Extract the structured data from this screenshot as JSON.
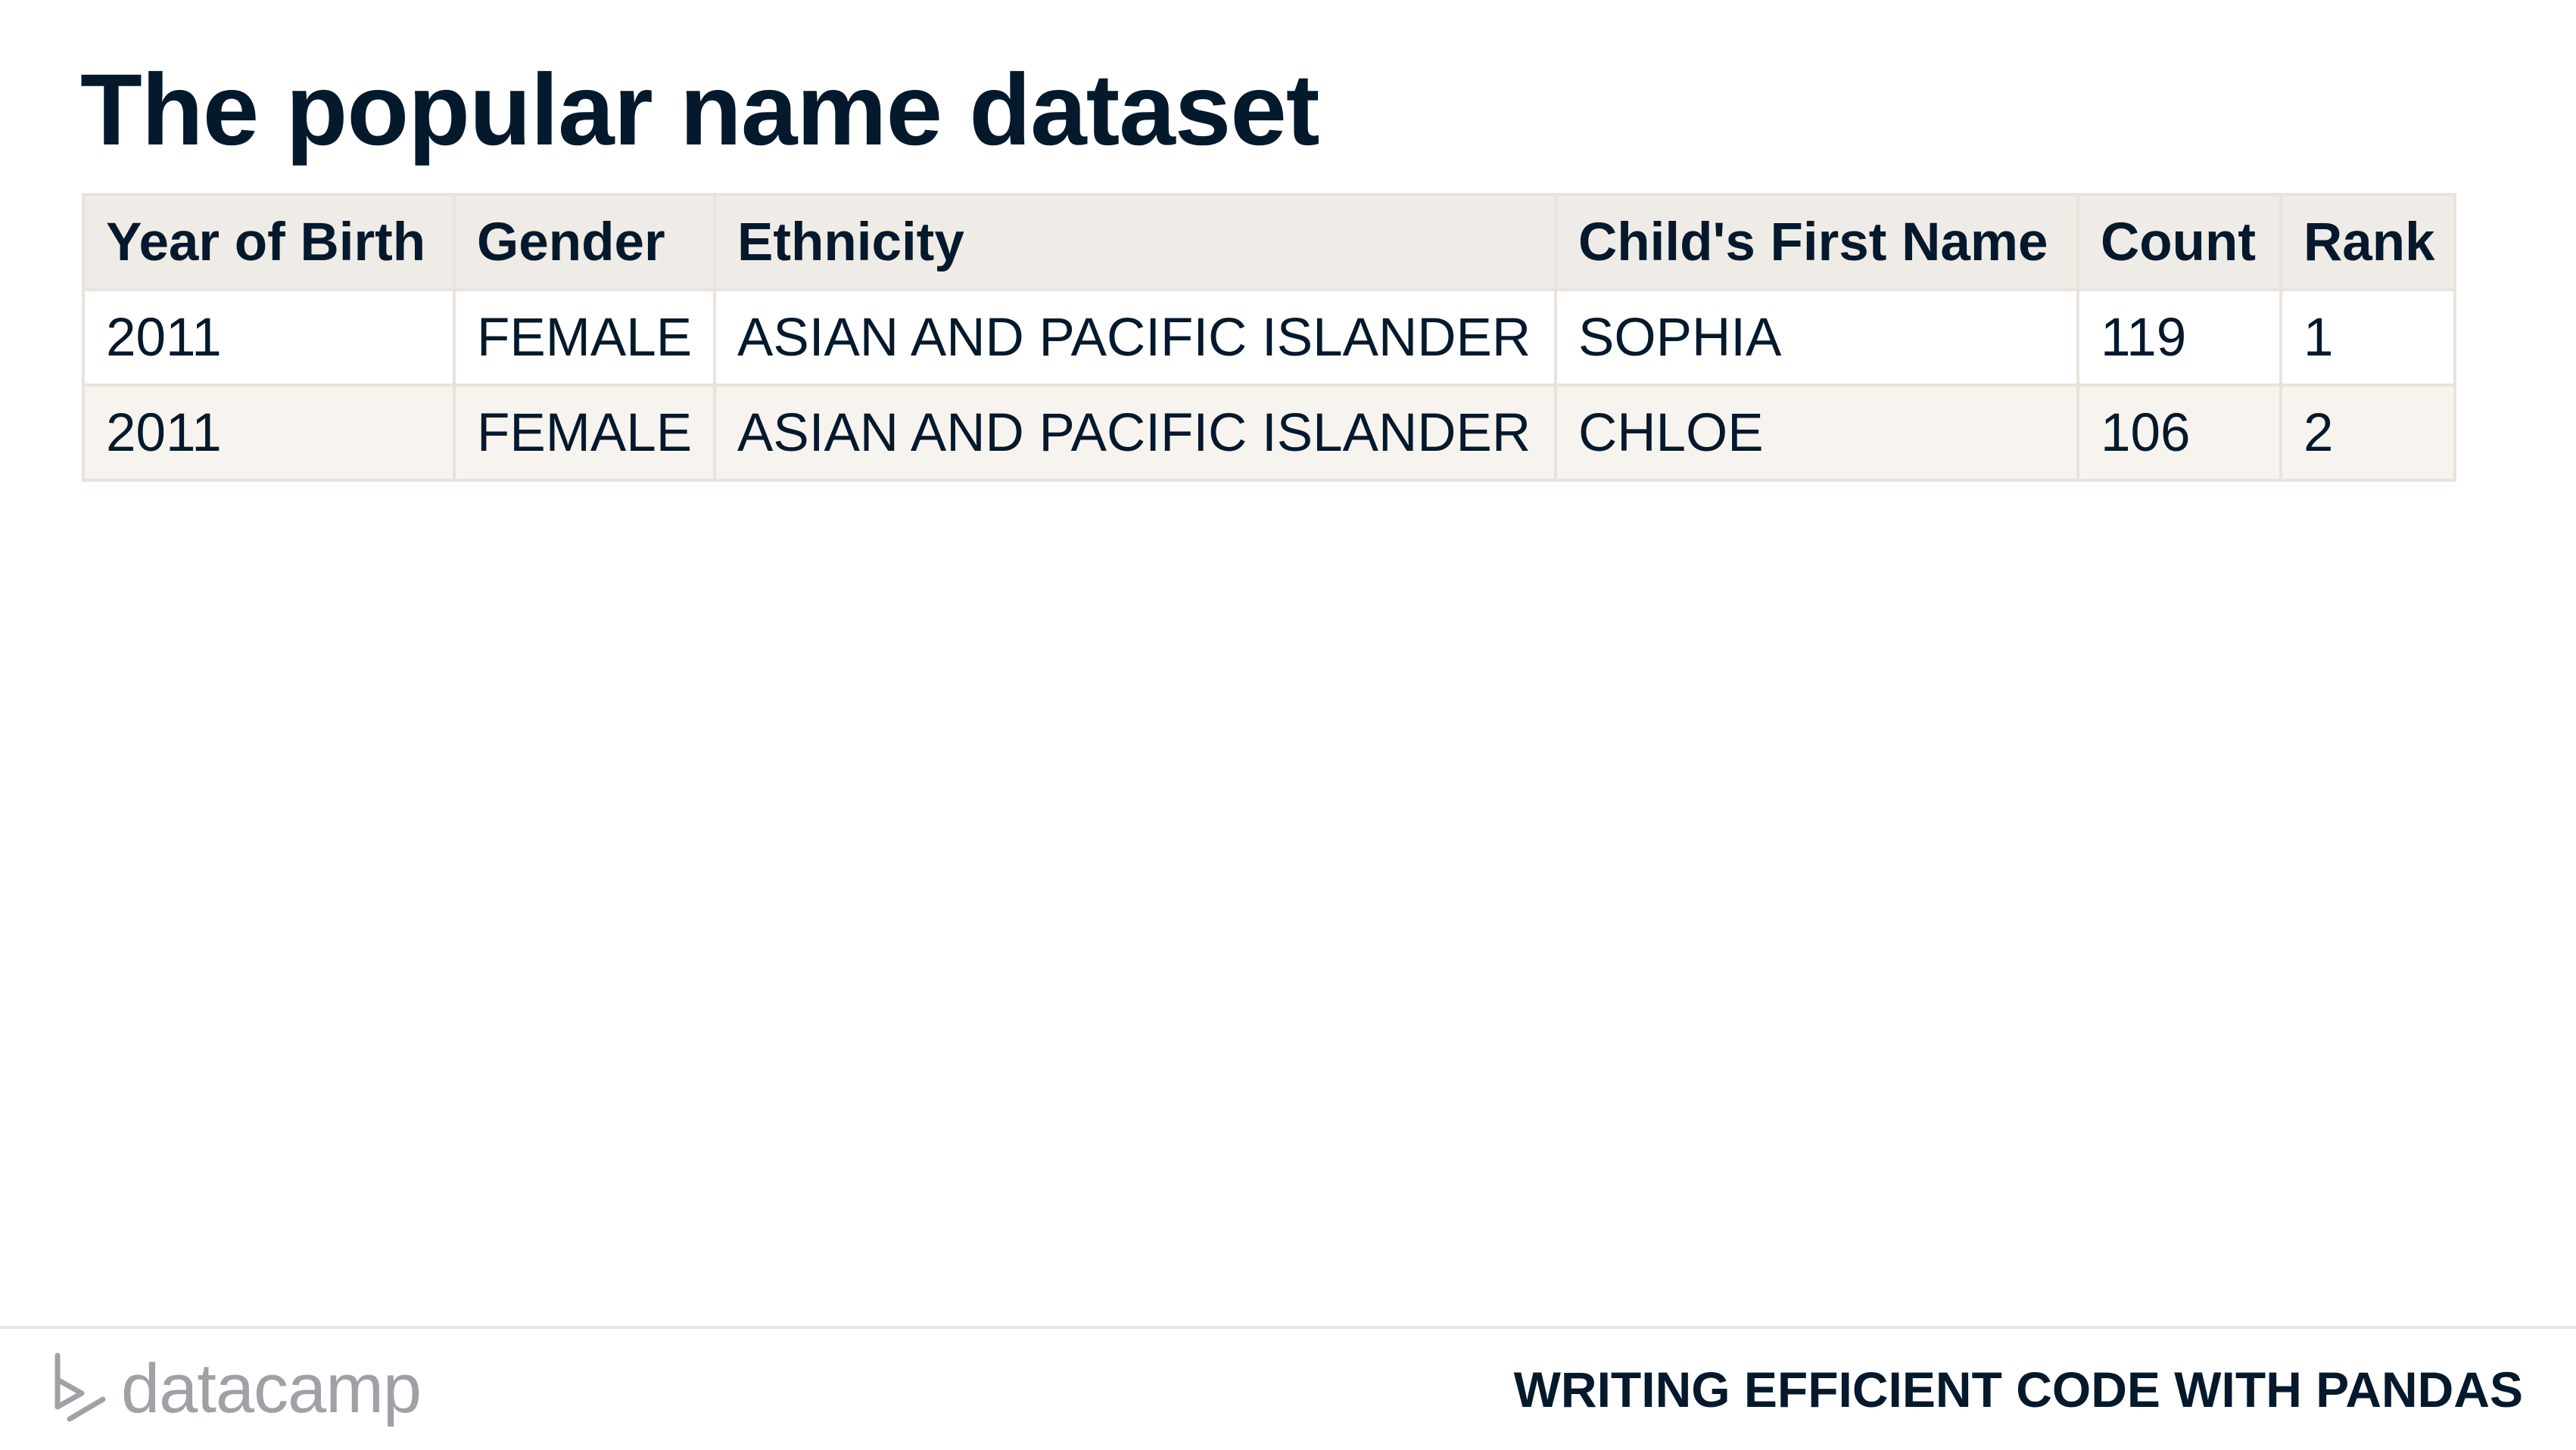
{
  "slide": {
    "title": "The popular name dataset"
  },
  "table": {
    "headers": [
      "Year of Birth",
      "Gender",
      "Ethnicity",
      "Child's First Name",
      "Count",
      "Rank"
    ],
    "rows": [
      [
        "2011",
        "FEMALE",
        "ASIAN AND PACIFIC ISLANDER",
        "SOPHIA",
        "119",
        "1"
      ],
      [
        "2011",
        "FEMALE",
        "ASIAN AND PACIFIC ISLANDER",
        "CHLOE",
        "106",
        "2"
      ]
    ]
  },
  "footer": {
    "logo_text": "datacamp",
    "course_title": "WRITING EFFICIENT CODE WITH PANDAS"
  },
  "colors": {
    "text": "#05192d",
    "header_bg": "#efebe6",
    "row_alt_bg": "#f7f4ef",
    "border": "#e8e3dc",
    "logo_gray": "#9ea1a6"
  }
}
